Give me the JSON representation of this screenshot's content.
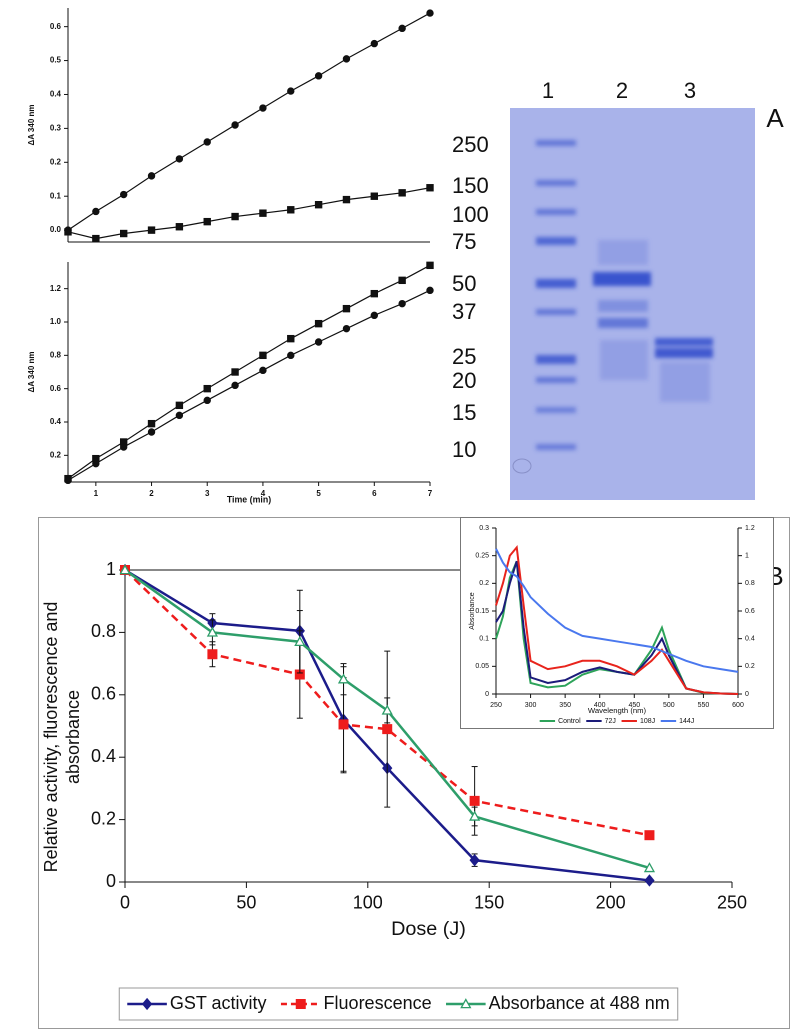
{
  "panel_labels": [
    "A",
    "B"
  ],
  "gel": {
    "lanes": [
      "1",
      "2",
      "3"
    ],
    "markers": [
      "250",
      "150",
      "100",
      "75",
      "50",
      "37",
      "25",
      "20",
      "15",
      "10"
    ]
  },
  "chart_data": [
    {
      "type": "line",
      "ylabel": "ΔA 340 nm",
      "x": [
        0.5,
        1,
        1.5,
        2,
        2.5,
        3,
        3.5,
        4,
        4.5,
        5,
        5.5,
        6,
        6.5,
        7
      ],
      "xlim": [
        0.5,
        7
      ],
      "ylim": [
        -0.035,
        0.655
      ],
      "yticks": [
        {
          "value": 0,
          "label": "0.0"
        },
        0.1,
        0.2,
        0.3,
        0.4,
        0.5,
        0.6
      ],
      "series": [
        {
          "color": "#111111",
          "marker": "circle",
          "values": [
            0.0,
            0.055,
            0.105,
            0.16,
            0.21,
            0.26,
            0.31,
            0.36,
            0.41,
            0.455,
            0.505,
            0.55,
            0.595,
            0.64
          ]
        },
        {
          "color": "#111111",
          "marker": "square",
          "values": [
            -0.005,
            -0.025,
            -0.01,
            0.0,
            0.01,
            0.025,
            0.04,
            0.05,
            0.06,
            0.075,
            0.09,
            0.1,
            0.11,
            0.125
          ]
        }
      ]
    },
    {
      "type": "line",
      "ylabel": "ΔA 340 nm",
      "xlabel": "Time (min)",
      "x": [
        0.5,
        1,
        1.5,
        2,
        2.5,
        3,
        3.5,
        4,
        4.5,
        5,
        5.5,
        6,
        6.5,
        7
      ],
      "xlim": [
        0.5,
        7
      ],
      "ylim": [
        0.04,
        1.36
      ],
      "xticks": [
        1,
        2,
        3,
        4,
        5,
        6,
        7
      ],
      "yticks": [
        0.2,
        0.4,
        0.6,
        0.8,
        {
          "value": 1,
          "label": "1.0"
        },
        1.2
      ],
      "series": [
        {
          "color": "#111111",
          "marker": "square",
          "values": [
            0.06,
            0.18,
            0.28,
            0.39,
            0.5,
            0.6,
            0.7,
            0.8,
            0.9,
            0.99,
            1.08,
            1.17,
            1.25,
            1.34
          ]
        },
        {
          "color": "#111111",
          "marker": "circle",
          "values": [
            0.05,
            0.15,
            0.25,
            0.34,
            0.44,
            0.53,
            0.62,
            0.71,
            0.8,
            0.88,
            0.96,
            1.04,
            1.11,
            1.19
          ]
        }
      ]
    },
    {
      "type": "line",
      "xlabel": "Dose (J)",
      "ylabel": "Relative activity, fluorescence and absorbance",
      "x": [
        0,
        36,
        72,
        90,
        108,
        144,
        216
      ],
      "xlim": [
        0,
        250
      ],
      "ylim": [
        0,
        1
      ],
      "xticks": [
        0,
        50,
        100,
        150,
        200,
        250
      ],
      "yticks": [
        0,
        0.2,
        0.4,
        0.6,
        0.8,
        1
      ],
      "legend": "bottom",
      "series": [
        {
          "name": "GST activity",
          "color": "#1c1c8a",
          "marker": "diamond",
          "values": [
            1,
            0.83,
            0.805,
            0.52,
            0.365,
            0.07,
            0.005
          ],
          "errors": [
            0,
            0.03,
            0.13,
            0.17,
            0,
            0.02,
            0
          ]
        },
        {
          "name": "Fluorescence",
          "color": "#ee1c1c",
          "marker": "square",
          "line_style": "dashed",
          "values": [
            1,
            0.73,
            0.665,
            0.505,
            0.49,
            0.26,
            0.15
          ],
          "errors": [
            0,
            0.04,
            0.14,
            0.15,
            0.25,
            0.11,
            0
          ]
        },
        {
          "name": "Absorbance at 488 nm",
          "color": "#2e9e6a",
          "marker": "triangle",
          "values": [
            1,
            0.8,
            0.77,
            0.65,
            0.55,
            0.21,
            0.045
          ],
          "errors": [
            0,
            0.04,
            0.1,
            0.05,
            0.04,
            0.03,
            0
          ]
        }
      ]
    },
    {
      "type": "line",
      "xlabel": "Wavelength (nm)",
      "ylabel": "Absorbance",
      "x": [
        250,
        260,
        270,
        280,
        290,
        300,
        325,
        350,
        375,
        400,
        425,
        450,
        475,
        490,
        500,
        525,
        550,
        575,
        600
      ],
      "xlim": [
        250,
        600
      ],
      "ylim": [
        0,
        0.3
      ],
      "y2lim": [
        0,
        1.2
      ],
      "xticks": [
        250,
        300,
        350,
        400,
        450,
        500,
        550,
        600
      ],
      "yticks": [
        0,
        0.05,
        0.1,
        0.15,
        0.2,
        0.25,
        0.3
      ],
      "y2ticks": [
        0,
        0.2,
        0.4,
        0.6,
        0.8,
        1,
        1.2
      ],
      "legend": "bottom",
      "series": [
        {
          "name": "Control",
          "color": "#2ea35a",
          "values": [
            0.1,
            0.14,
            0.21,
            0.24,
            0.1,
            0.02,
            0.012,
            0.015,
            0.035,
            0.045,
            0.04,
            0.035,
            0.08,
            0.12,
            0.08,
            0.01,
            0.002,
            0.001,
            0
          ]
        },
        {
          "name": "72J",
          "color": "#1c1c7a",
          "values": [
            0.13,
            0.15,
            0.2,
            0.24,
            0.12,
            0.03,
            0.02,
            0.025,
            0.04,
            0.048,
            0.04,
            0.035,
            0.07,
            0.1,
            0.07,
            0.01,
            0.003,
            0.001,
            0
          ]
        },
        {
          "name": "108J",
          "color": "#e8241c",
          "values": [
            0.16,
            0.2,
            0.25,
            0.265,
            0.16,
            0.06,
            0.045,
            0.05,
            0.06,
            0.06,
            0.05,
            0.035,
            0.06,
            0.08,
            0.06,
            0.01,
            0.003,
            0.001,
            0
          ]
        },
        {
          "name": "144J",
          "color": "#4a78ee",
          "axis": "y2",
          "values": [
            1.05,
            0.95,
            0.88,
            0.85,
            0.78,
            0.7,
            0.58,
            0.48,
            0.42,
            0.4,
            0.38,
            0.36,
            0.34,
            0.31,
            0.29,
            0.24,
            0.2,
            0.18,
            0.16
          ]
        }
      ]
    }
  ]
}
